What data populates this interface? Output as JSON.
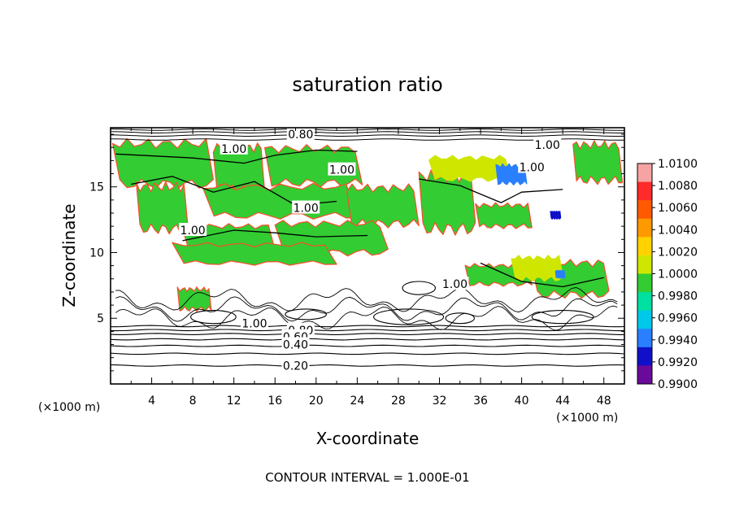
{
  "chart_data": {
    "type": "heatmap",
    "title": "saturation ratio",
    "xlabel": "X-coordinate",
    "ylabel": "Z-coordinate",
    "x_unit_left": "(×1000 m)",
    "x_unit_right": "(×1000 m)",
    "xlim": [
      0,
      50
    ],
    "ylim": [
      0,
      19.5
    ],
    "x_ticks": [
      "4",
      "8",
      "12",
      "16",
      "20",
      "24",
      "28",
      "32",
      "36",
      "40",
      "44",
      "48"
    ],
    "y_ticks": [
      "5",
      "10",
      "15"
    ],
    "colorbar": {
      "labels": [
        "1.0100",
        "1.0080",
        "1.0060",
        "1.0040",
        "1.0020",
        "1.0000",
        "0.9980",
        "0.9960",
        "0.9940",
        "0.9920",
        "0.9900"
      ],
      "colors": [
        "#f5a3a3",
        "#ff2a2a",
        "#ff5a00",
        "#ff9900",
        "#ffd200",
        "#cfe600",
        "#33cc33",
        "#00e0a0",
        "#00c8e8",
        "#2a7fff",
        "#1010c8",
        "#6a0a9a"
      ]
    },
    "contour_labels": [
      "0.80",
      "1.00",
      "1.00",
      "1.00",
      "1.00",
      "1.00",
      "1.00",
      "1.00",
      "1.00",
      "0.80",
      "0.60",
      "0.40",
      "0.20"
    ],
    "footer": "CONTOUR INTERVAL = 1.000E-01",
    "fill_regions": [
      {
        "x": [
          0.2,
          10
        ],
        "y": [
          15.2,
          18.3
        ],
        "level": "1.0000"
      },
      {
        "x": [
          10,
          15
        ],
        "y": [
          14.8,
          18.0
        ],
        "level": "1.0000"
      },
      {
        "x": [
          15,
          24.5
        ],
        "y": [
          15.3,
          17.9
        ],
        "level": "1.0000"
      },
      {
        "x": [
          2.5,
          7.5
        ],
        "y": [
          11.8,
          15.0
        ],
        "level": "1.0000"
      },
      {
        "x": [
          9,
          24
        ],
        "y": [
          12.8,
          15.0
        ],
        "level": "1.0000"
      },
      {
        "x": [
          23,
          30
        ],
        "y": [
          12.2,
          14.9
        ],
        "level": "1.0000"
      },
      {
        "x": [
          30,
          35.5
        ],
        "y": [
          11.8,
          15.8
        ],
        "level": "1.0000"
      },
      {
        "x": [
          35.5,
          41
        ],
        "y": [
          12.0,
          13.6
        ],
        "level": "1.0000"
      },
      {
        "x": [
          7,
          16
        ],
        "y": [
          10.3,
          12.0
        ],
        "level": "1.0000"
      },
      {
        "x": [
          16,
          27
        ],
        "y": [
          10.0,
          12.2
        ],
        "level": "1.0000"
      },
      {
        "x": [
          6,
          22
        ],
        "y": [
          9.2,
          10.6
        ],
        "level": "1.0000"
      },
      {
        "x": [
          34.5,
          41
        ],
        "y": [
          7.6,
          9.0
        ],
        "level": "1.0000"
      },
      {
        "x": [
          41,
          48.5
        ],
        "y": [
          6.8,
          9.2
        ],
        "level": "1.0000"
      },
      {
        "x": [
          45,
          49.8
        ],
        "y": [
          15.5,
          18.2
        ],
        "level": "1.0000"
      },
      {
        "x": [
          6.5,
          9.8
        ],
        "y": [
          5.7,
          7.2
        ],
        "level": "1.0000"
      },
      {
        "x": [
          39,
          44
        ],
        "y": [
          8.0,
          9.6
        ],
        "level": "1.0020"
      },
      {
        "x": [
          31,
          39
        ],
        "y": [
          15.6,
          17.2
        ],
        "level": "1.0020"
      },
      {
        "x": [
          37.5,
          40.5
        ],
        "y": [
          15.3,
          16.6
        ],
        "level": "0.9940"
      },
      {
        "x": [
          42.8,
          43.8
        ],
        "y": [
          12.6,
          13.1
        ],
        "level": "0.9920"
      },
      {
        "x": [
          43.3,
          44.2
        ],
        "y": [
          8.1,
          8.6
        ],
        "level": "0.9940"
      }
    ]
  }
}
